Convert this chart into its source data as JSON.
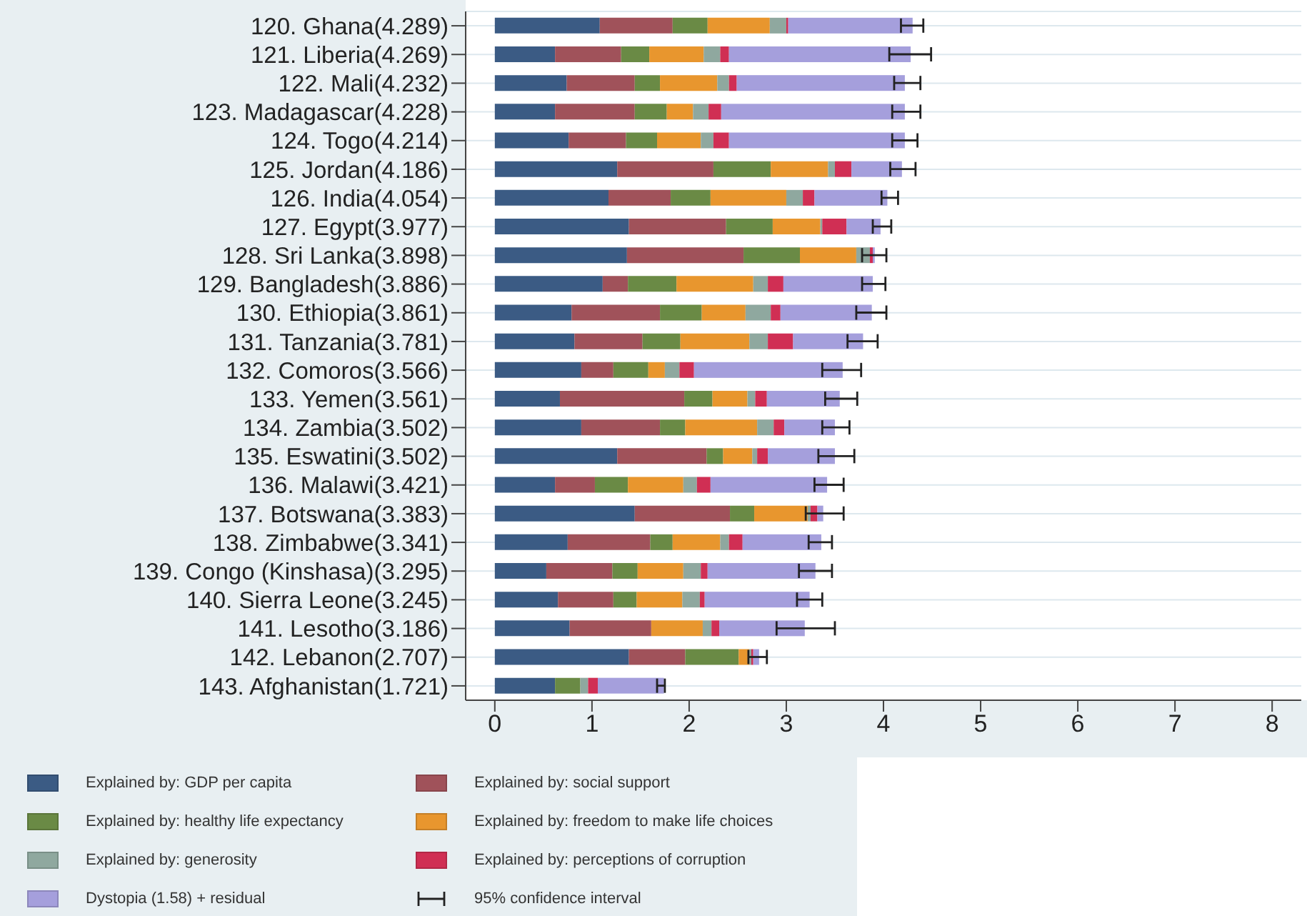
{
  "chart_data": {
    "type": "bar",
    "orientation": "horizontal",
    "stacked": true,
    "categories": [
      "120. Ghana(4.289)",
      "121. Liberia(4.269)",
      "122. Mali(4.232)",
      "123. Madagascar(4.228)",
      "124. Togo(4.214)",
      "125. Jordan(4.186)",
      "126. India(4.054)",
      "127. Egypt(3.977)",
      "128. Sri Lanka(3.898)",
      "129. Bangladesh(3.886)",
      "130. Ethiopia(3.861)",
      "131. Tanzania(3.781)",
      "132. Comoros(3.566)",
      "133. Yemen(3.561)",
      "134. Zambia(3.502)",
      "135. Eswatini(3.502)",
      "136. Malawi(3.421)",
      "137. Botswana(3.383)",
      "138. Zimbabwe(3.341)",
      "139. Congo (Kinshasa)(3.295)",
      "140. Sierra Leone(3.245)",
      "141. Lesotho(3.186)",
      "142. Lebanon(2.707)",
      "143. Afghanistan(1.721)"
    ],
    "series": [
      {
        "name": "Explained by: GDP per capita",
        "color": "#3b5b84",
        "values": [
          1.08,
          0.62,
          0.74,
          0.62,
          0.76,
          1.26,
          1.17,
          1.38,
          1.36,
          1.11,
          0.79,
          0.82,
          0.89,
          0.67,
          0.89,
          1.26,
          0.62,
          1.44,
          0.75,
          0.53,
          0.65,
          0.77,
          1.38,
          0.62
        ]
      },
      {
        "name": "Explained by: social support",
        "color": "#a0525a",
        "values": [
          0.75,
          0.68,
          0.7,
          0.82,
          0.59,
          0.99,
          0.64,
          1,
          1.2,
          0.26,
          0.91,
          0.7,
          0.33,
          1.28,
          0.81,
          0.92,
          0.41,
          0.98,
          0.85,
          0.68,
          0.57,
          0.84,
          0.58,
          0
        ]
      },
      {
        "name": "Explained by: healthy life expectancy",
        "color": "#6a8a45",
        "values": [
          0.36,
          0.29,
          0.26,
          0.33,
          0.32,
          0.59,
          0.41,
          0.48,
          0.58,
          0.5,
          0.43,
          0.39,
          0.36,
          0.29,
          0.26,
          0.17,
          0.34,
          0.25,
          0.23,
          0.26,
          0.24,
          0,
          0.55,
          0.26
        ]
      },
      {
        "name": "Explained by: freedom to make life choices",
        "color": "#e8962e",
        "values": [
          0.64,
          0.56,
          0.59,
          0.27,
          0.45,
          0.59,
          0.78,
          0.49,
          0.58,
          0.79,
          0.45,
          0.71,
          0.17,
          0.36,
          0.74,
          0.3,
          0.57,
          0.55,
          0.49,
          0.47,
          0.47,
          0.53,
          0.11,
          0
        ]
      },
      {
        "name": "Explained by: generosity",
        "color": "#8fa89f",
        "values": [
          0.17,
          0.17,
          0.12,
          0.16,
          0.13,
          0.07,
          0.17,
          0.02,
          0.14,
          0.15,
          0.26,
          0.19,
          0.15,
          0.08,
          0.17,
          0.05,
          0.14,
          0.03,
          0.09,
          0.18,
          0.18,
          0.09,
          0.02,
          0.08
        ]
      },
      {
        "name": "Explained by: perceptions of corruption",
        "color": "#d02f54",
        "values": [
          0.02,
          0.09,
          0.08,
          0.13,
          0.16,
          0.17,
          0.12,
          0.25,
          0.03,
          0.16,
          0.1,
          0.26,
          0.15,
          0.12,
          0.11,
          0.11,
          0.14,
          0.07,
          0.14,
          0.07,
          0.05,
          0.08,
          0.02,
          0.1
        ]
      },
      {
        "name": "Dystopia (1.58) + residual",
        "color": "#a59fdc",
        "values": [
          1.28,
          1.87,
          1.73,
          1.89,
          1.81,
          0.52,
          0.75,
          0.35,
          0.02,
          0.92,
          0.94,
          0.72,
          1.53,
          0.75,
          0.52,
          0.69,
          1.2,
          0.06,
          0.81,
          1.11,
          1.08,
          0.88,
          0.06,
          0.68
        ],
        "errors": [
          [
            4.18,
            4.41
          ],
          [
            4.06,
            4.49
          ],
          [
            4.11,
            4.38
          ],
          [
            4.09,
            4.38
          ],
          [
            4.09,
            4.35
          ],
          [
            4.07,
            4.33
          ],
          [
            3.98,
            4.15
          ],
          [
            3.89,
            4.08
          ],
          [
            3.78,
            4.03
          ],
          [
            3.78,
            4.02
          ],
          [
            3.72,
            4.03
          ],
          [
            3.63,
            3.94
          ],
          [
            3.37,
            3.77
          ],
          [
            3.4,
            3.73
          ],
          [
            3.37,
            3.65
          ],
          [
            3.33,
            3.7
          ],
          [
            3.29,
            3.59
          ],
          [
            3.2,
            3.59
          ],
          [
            3.23,
            3.47
          ],
          [
            3.13,
            3.47
          ],
          [
            3.11,
            3.37
          ],
          [
            2.9,
            3.5
          ],
          [
            2.61,
            2.8
          ],
          [
            1.67,
            1.75
          ]
        ]
      }
    ],
    "xlim": [
      -0.3,
      8.3
    ],
    "xticks": [
      0,
      1,
      2,
      3,
      4,
      5,
      6,
      7,
      8
    ],
    "grid": "y",
    "legend": "bottom",
    "annotations": [
      "95% confidence interval"
    ]
  }
}
